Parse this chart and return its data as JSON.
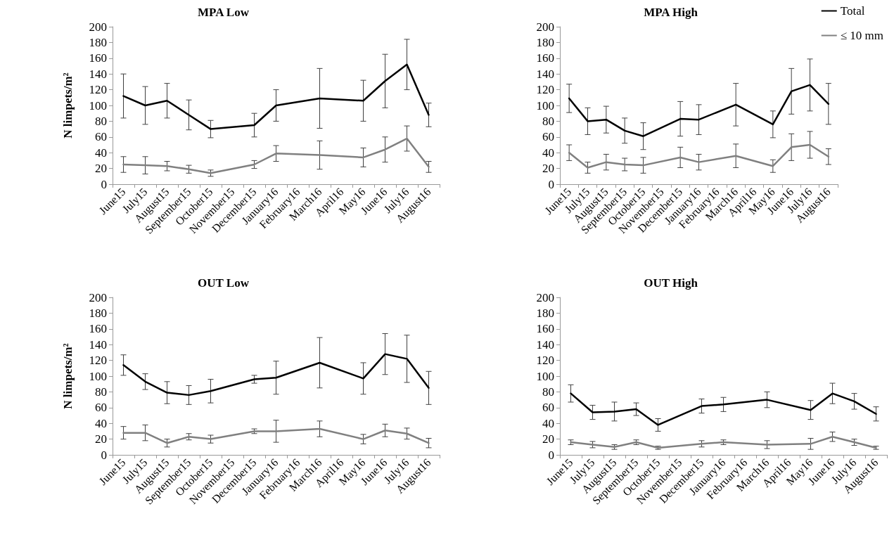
{
  "chart_data": [
    {
      "type": "line",
      "title": "MPA Low",
      "ylabel": "N limpets/m²",
      "categories": [
        "June15",
        "July15",
        "August15",
        "September15",
        "October15",
        "November15",
        "December15",
        "January16",
        "February16",
        "March16",
        "April16",
        "May16",
        "June16",
        "July16",
        "August16"
      ],
      "ylim": [
        0,
        200
      ],
      "yticks": [
        0,
        20,
        40,
        60,
        80,
        100,
        120,
        140,
        160,
        180,
        200
      ],
      "grid": false,
      "marker": "none",
      "line_style": "solid",
      "series": [
        {
          "color": "#000000",
          "values": [
            112,
            100,
            106,
            88,
            70,
            null,
            75,
            100,
            null,
            109,
            null,
            106,
            131,
            152,
            88
          ],
          "errors": [
            28,
            24,
            22,
            19,
            11,
            null,
            15,
            20,
            null,
            38,
            null,
            26,
            34,
            32,
            15
          ]
        },
        {
          "color": "#808080",
          "values": [
            25,
            24,
            23,
            19,
            14,
            null,
            25,
            39,
            null,
            37,
            null,
            34,
            44,
            58,
            22
          ],
          "errors": [
            10,
            11,
            6,
            5,
            4,
            null,
            5,
            10,
            null,
            18,
            null,
            12,
            16,
            16,
            7
          ]
        }
      ]
    },
    {
      "type": "line",
      "title": "MPA High",
      "categories": [
        "June15",
        "July15",
        "August15",
        "September15",
        "October15",
        "November15",
        "December15",
        "January16",
        "February16",
        "March16",
        "April16",
        "May16",
        "June16",
        "July16",
        "August16"
      ],
      "ylim": [
        0,
        200
      ],
      "yticks": [
        0,
        20,
        40,
        60,
        80,
        100,
        120,
        140,
        160,
        180,
        200
      ],
      "grid": false,
      "marker": "none",
      "line_style": "solid",
      "legend": "top right",
      "series": [
        {
          "name": "Total",
          "color": "#000000",
          "values": [
            109,
            80,
            82,
            68,
            61,
            null,
            83,
            82,
            null,
            101,
            null,
            76,
            118,
            126,
            102
          ],
          "errors": [
            18,
            17,
            17,
            16,
            17,
            null,
            22,
            19,
            null,
            27,
            null,
            17,
            29,
            33,
            26
          ]
        },
        {
          "name": "≤ 10 mm",
          "color": "#808080",
          "values": [
            40,
            21,
            28,
            25,
            24,
            null,
            34,
            28,
            null,
            36,
            null,
            23,
            47,
            50,
            35
          ],
          "errors": [
            10,
            7,
            10,
            8,
            10,
            null,
            13,
            10,
            null,
            15,
            null,
            8,
            17,
            17,
            10
          ]
        }
      ]
    },
    {
      "type": "line",
      "title": "OUT Low",
      "ylabel": "N limpets/m²",
      "categories": [
        "June15",
        "July15",
        "August15",
        "September15",
        "October15",
        "November15",
        "December15",
        "January16",
        "February16",
        "March16",
        "April16",
        "May16",
        "June16",
        "July16",
        "August16"
      ],
      "ylim": [
        0,
        200
      ],
      "yticks": [
        0,
        20,
        40,
        60,
        80,
        100,
        120,
        140,
        160,
        180,
        200
      ],
      "grid": false,
      "marker": "none",
      "line_style": "solid",
      "series": [
        {
          "color": "#000000",
          "values": [
            114,
            93,
            79,
            76,
            81,
            null,
            96,
            98,
            null,
            117,
            null,
            97,
            128,
            122,
            85
          ],
          "errors": [
            13,
            10,
            14,
            12,
            15,
            null,
            5,
            21,
            null,
            32,
            null,
            20,
            26,
            30,
            21
          ]
        },
        {
          "color": "#808080",
          "values": [
            28,
            28,
            15,
            23,
            20,
            null,
            30,
            30,
            null,
            33,
            null,
            20,
            31,
            27,
            15
          ],
          "errors": [
            8,
            10,
            5,
            4,
            5,
            null,
            3,
            14,
            null,
            10,
            null,
            6,
            8,
            7,
            6
          ]
        }
      ]
    },
    {
      "type": "line",
      "title": "OUT High",
      "categories": [
        "June15",
        "July15",
        "August15",
        "September15",
        "October15",
        "November15",
        "December15",
        "January16",
        "February16",
        "March16",
        "April16",
        "May16",
        "June16",
        "July16",
        "August16"
      ],
      "ylim": [
        0,
        200
      ],
      "yticks": [
        0,
        20,
        40,
        60,
        80,
        100,
        120,
        140,
        160,
        180,
        200
      ],
      "grid": false,
      "marker": "none",
      "line_style": "solid",
      "series": [
        {
          "color": "#000000",
          "values": [
            78,
            54,
            55,
            58,
            38,
            null,
            62,
            64,
            null,
            70,
            null,
            57,
            78,
            68,
            52
          ],
          "errors": [
            11,
            9,
            12,
            8,
            8,
            null,
            9,
            9,
            null,
            10,
            null,
            12,
            13,
            10,
            9
          ]
        },
        {
          "color": "#808080",
          "values": [
            16,
            13,
            10,
            16,
            9,
            null,
            14,
            16,
            null,
            13,
            null,
            14,
            23,
            16,
            9
          ],
          "errors": [
            3,
            4,
            3,
            3,
            2,
            null,
            4,
            3,
            null,
            5,
            null,
            7,
            6,
            4,
            2
          ]
        }
      ]
    }
  ]
}
